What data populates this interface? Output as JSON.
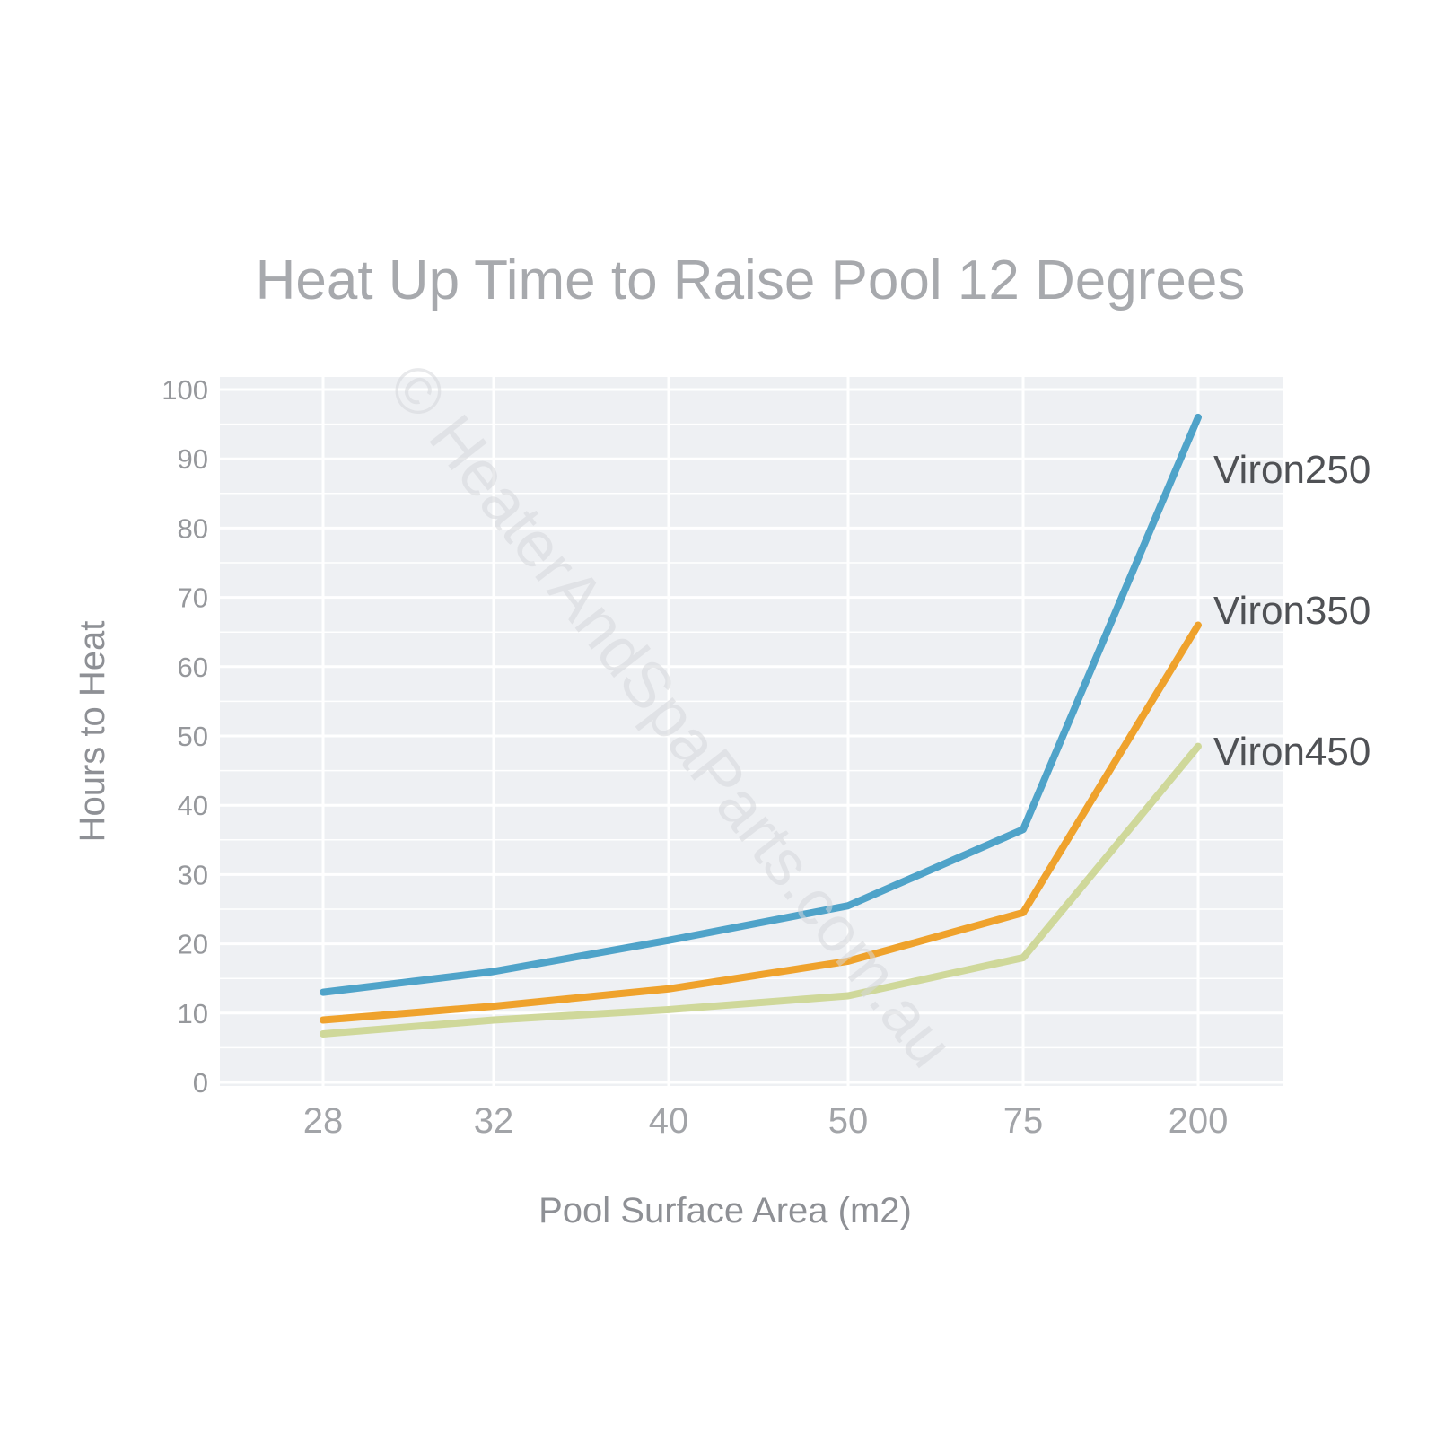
{
  "watermark": "© HeaterAndSpaParts.com.au",
  "chart_data": {
    "type": "line",
    "title": "Heat Up Time to Raise Pool 12 Degrees",
    "xlabel": "Pool Surface Area (m2)",
    "ylabel": "Hours to Heat",
    "categories": [
      "28",
      "32",
      "40",
      "50",
      "75",
      "200"
    ],
    "ylim": [
      0,
      100
    ],
    "yticks": [
      "0",
      "10",
      "20",
      "30",
      "40",
      "50",
      "60",
      "70",
      "80",
      "90",
      "100"
    ],
    "grid": true,
    "legend": "direct labels at right end of lines",
    "series": [
      {
        "name": "Viron250",
        "color": "#4fa3c9",
        "values": [
          13,
          16,
          20.5,
          25.5,
          36.5,
          96
        ]
      },
      {
        "name": "Viron350",
        "color": "#efa22c",
        "values": [
          9,
          11,
          13.5,
          17.5,
          24.5,
          66
        ]
      },
      {
        "name": "Viron450",
        "color": "#cfd89a",
        "values": [
          7,
          9,
          10.5,
          12.5,
          18,
          48.5
        ]
      }
    ]
  }
}
